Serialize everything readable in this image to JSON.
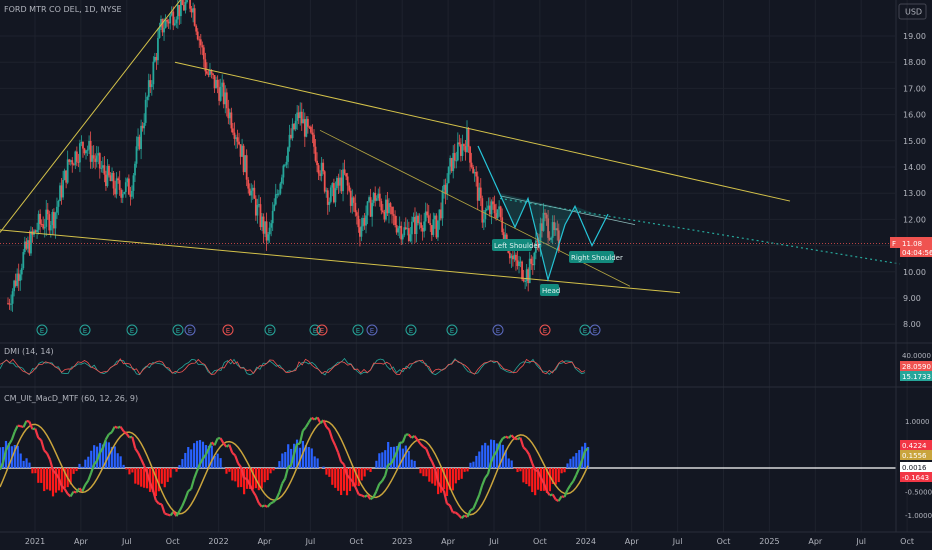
{
  "symbol_title": "FORD MTR CO DEL, 1D, NYSE",
  "currency": "USD",
  "price_axis": {
    "ticks": [
      "19.00",
      "18.00",
      "17.00",
      "16.00",
      "15.00",
      "14.00",
      "13.00",
      "12.00",
      "11.00",
      "10.00",
      "9.00",
      "8.00"
    ],
    "last_price": "11.08",
    "countdown": "04:04:56",
    "symbol_flag": "F"
  },
  "time_axis": [
    "2021",
    "Apr",
    "Jul",
    "Oct",
    "2022",
    "Apr",
    "Jul",
    "Oct",
    "2023",
    "Apr",
    "Jul",
    "Oct",
    "2024",
    "Apr",
    "Jul",
    "Oct",
    "2025",
    "Apr",
    "Jul",
    "Oct"
  ],
  "pattern_labels": {
    "left_shoulder": "Left Shoulder",
    "head": "Head",
    "right_shoulder": "Right Shoulder"
  },
  "dmi": {
    "title": "DMI (14, 14)",
    "axis_top": "40.0000",
    "plus_di": "28.0590",
    "minus_di": "15.1733",
    "colors": {
      "plus": "#ef5350",
      "minus": "#26a69a"
    }
  },
  "macd": {
    "title": "CM_Ult_MacD_MTF (60, 12, 26, 9)",
    "ticks": [
      "1.0000",
      "0.5000",
      "0.0000",
      "-0.5000",
      "-1.0000"
    ],
    "values": {
      "macd": "0.4224",
      "signal": "0.1556",
      "zero": "0.0016",
      "hist": "-0.1643"
    },
    "colors": {
      "macd_up": "#4caf50",
      "macd_down": "#f23645",
      "hist_pos": "#2962ff",
      "hist_neg": "#ff1a1a"
    }
  },
  "colors": {
    "bg": "#131722",
    "up": "#26a69a",
    "down": "#ef5350",
    "trend": "#d4c24a",
    "grid": "#1e222d"
  },
  "chart_data": {
    "type": "line",
    "title": "FORD MTR CO DEL, 1D, NYSE",
    "ylabel": "USD",
    "ylim": [
      7.5,
      20.5
    ],
    "x": [
      "2021-01",
      "2021-02",
      "2021-03",
      "2021-04",
      "2021-05",
      "2021-06",
      "2021-07",
      "2021-08",
      "2021-09",
      "2021-10",
      "2021-11",
      "2021-12",
      "2022-01",
      "2022-02",
      "2022-03",
      "2022-04",
      "2022-05",
      "2022-06",
      "2022-07",
      "2022-08",
      "2022-09",
      "2022-10",
      "2022-11",
      "2022-12",
      "2023-01",
      "2023-02",
      "2023-03",
      "2023-04",
      "2023-05",
      "2023-06",
      "2023-07",
      "2023-08",
      "2023-09",
      "2023-10",
      "2023-11",
      "2023-12",
      "2024-01"
    ],
    "series": [
      {
        "values": [
          8.8,
          10.6,
          11.8,
          12.1,
          14.2,
          14.9,
          14.0,
          13.2,
          13.2,
          16.3,
          19.3,
          20.0,
          20.3,
          17.6,
          16.8,
          15.2,
          12.8,
          11.2,
          14.2,
          16.0,
          14.8,
          12.8,
          13.6,
          11.7,
          12.9,
          12.1,
          11.5,
          12.0,
          11.7,
          14.2,
          15.1,
          12.2,
          12.4,
          10.4,
          9.9,
          12.0,
          11.1
        ]
      }
    ],
    "indicators": {
      "dmi": {
        "type": "line",
        "ylim": [
          0,
          40
        ],
        "plus_di_last": 28.059,
        "minus_di_last": 15.1733
      },
      "macd": {
        "type": "line",
        "ylim": [
          -1.1,
          1.25
        ],
        "macd_last": 0.4224,
        "signal_last": 0.1556,
        "hist_last": -0.1643
      }
    }
  }
}
